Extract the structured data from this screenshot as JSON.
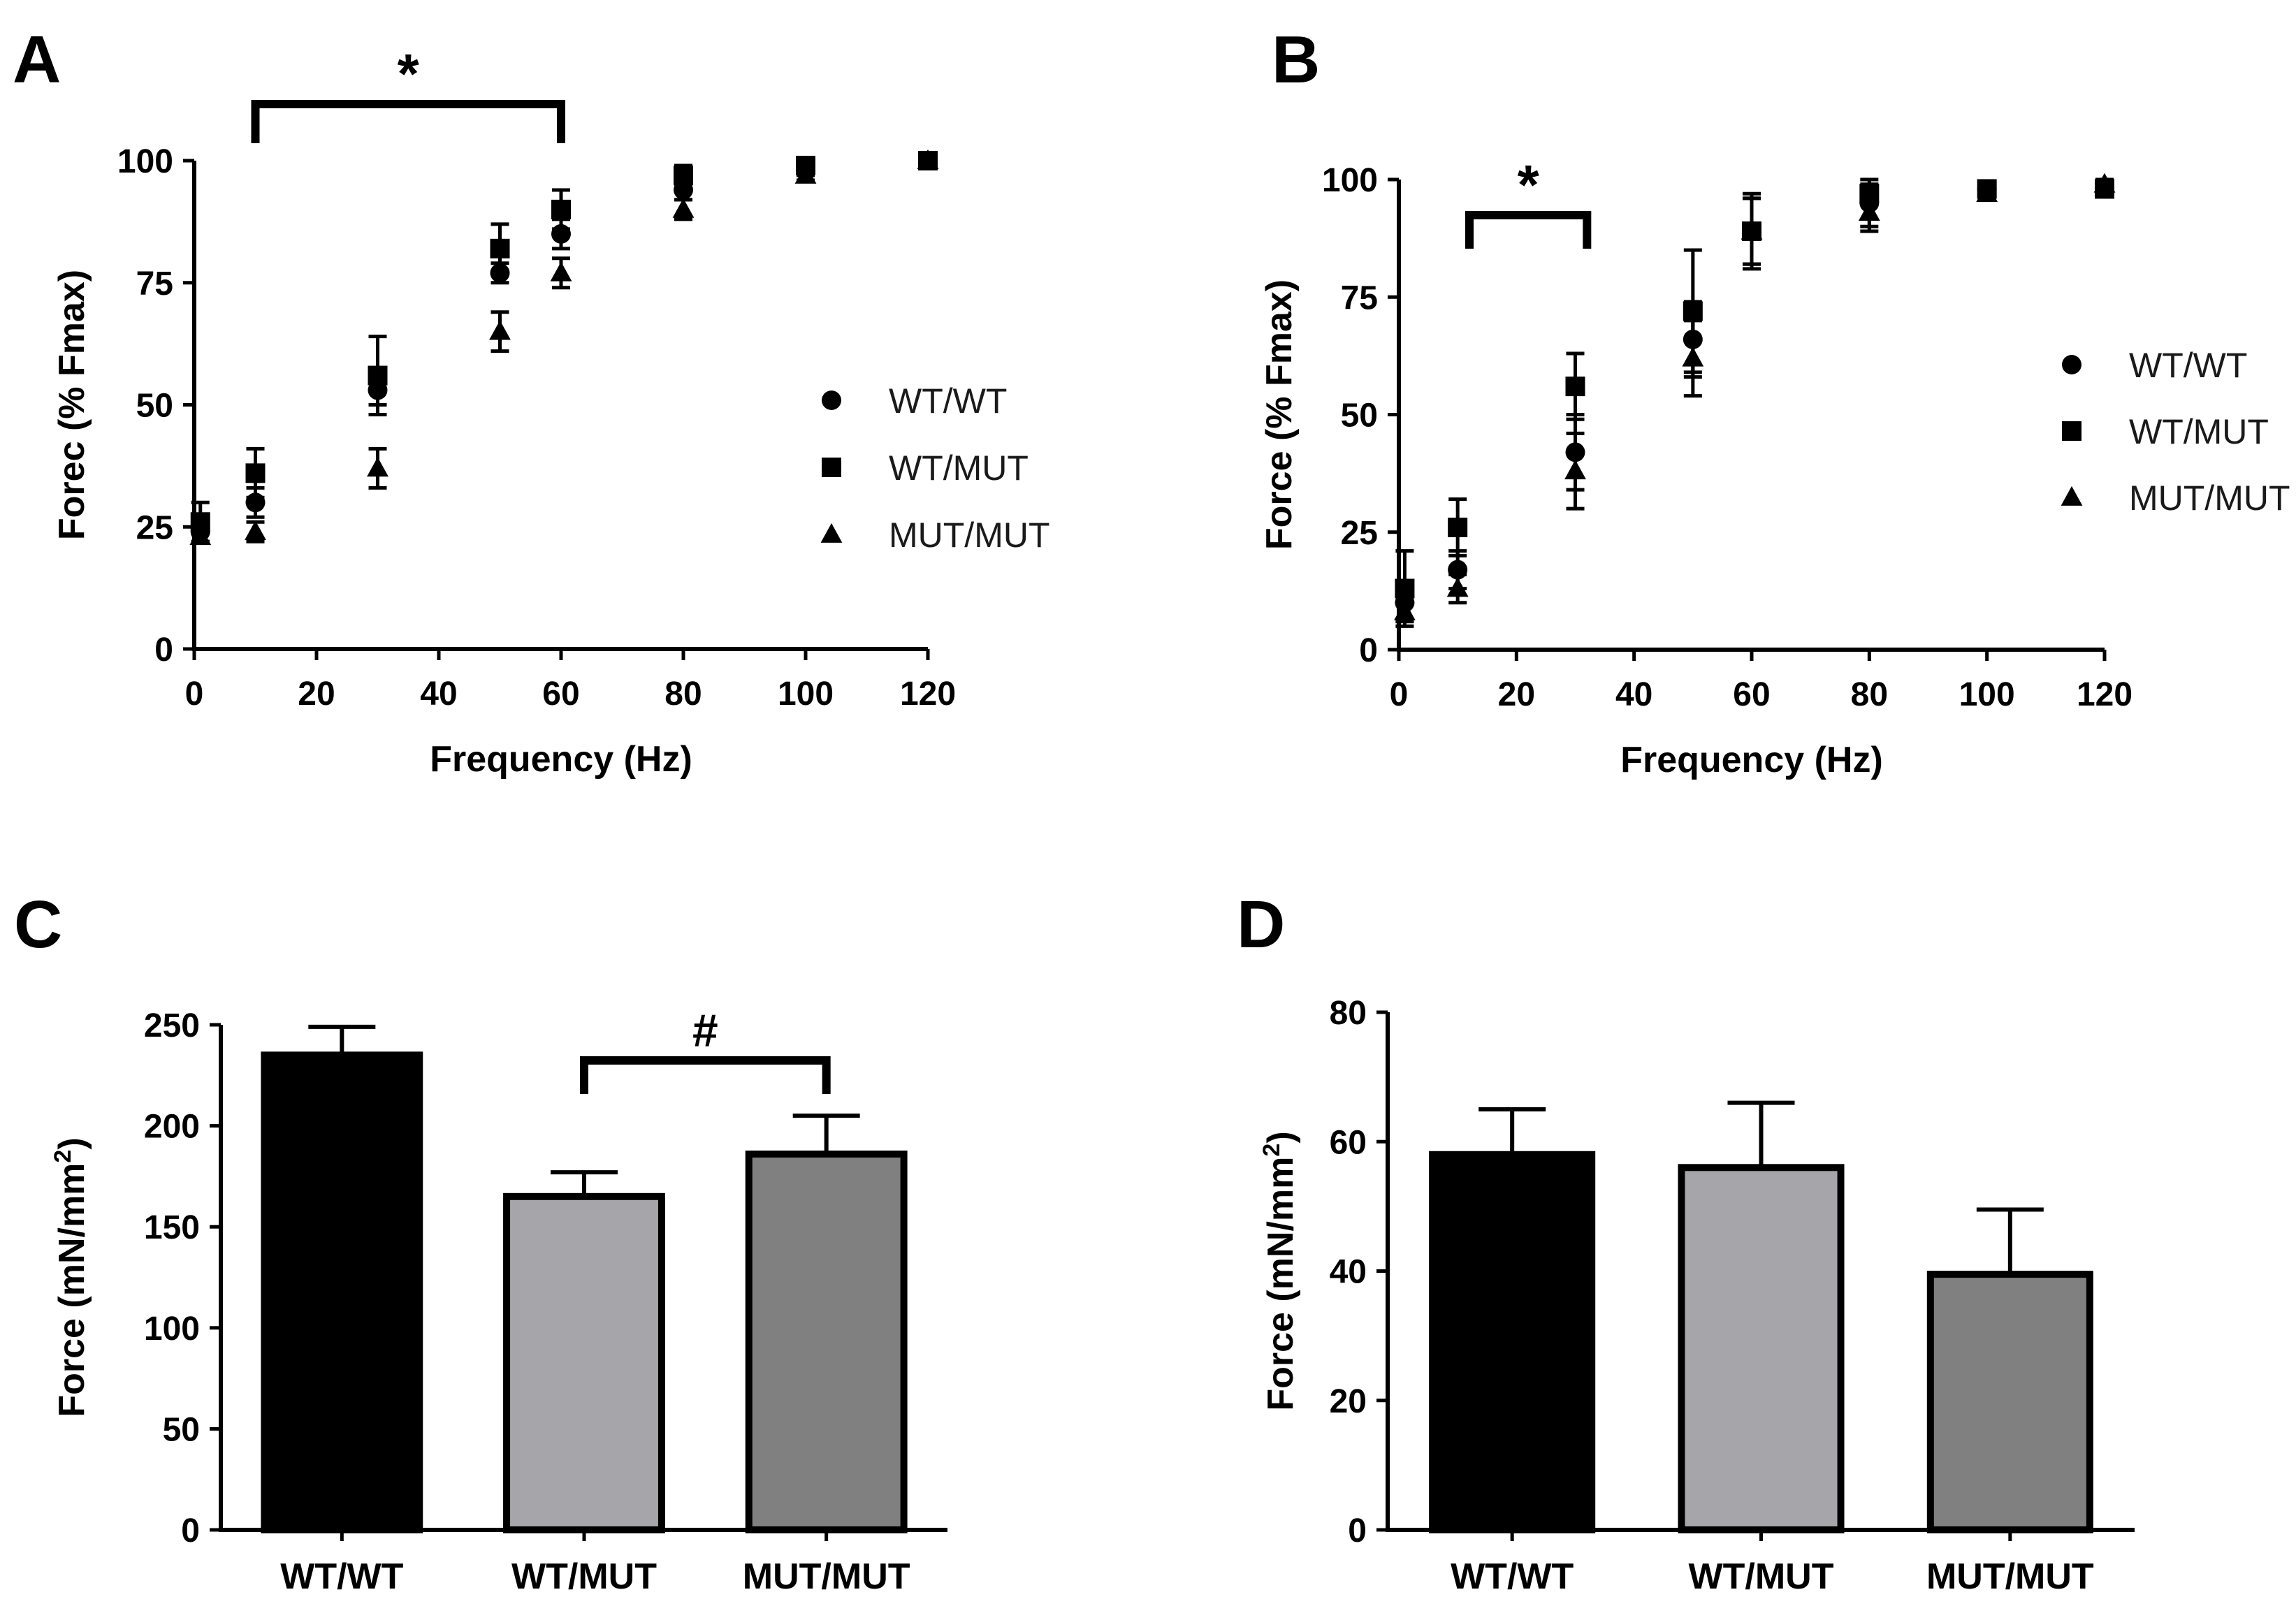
{
  "chart_data": [
    {
      "panel": "A",
      "type": "scatter",
      "xlabel": "Frequency (Hz)",
      "ylabel": "Forec (% Fmax)",
      "xlim": [
        0,
        120
      ],
      "ylim": [
        0,
        100
      ],
      "xticks": [
        "0",
        "20",
        "40",
        "60",
        "80",
        "100",
        "120"
      ],
      "yticks": [
        "0",
        "25",
        "50",
        "75",
        "100"
      ],
      "legend_position": "right",
      "significance": {
        "symbol": "*",
        "from_x": 10,
        "to_x": 60
      },
      "series": [
        {
          "name": "WT/WT",
          "marker": "circle",
          "x": [
            1,
            10,
            30,
            50,
            60,
            80,
            100,
            120
          ],
          "y": [
            24,
            30,
            53,
            77,
            85,
            94,
            98,
            100
          ],
          "err": [
            2,
            3,
            3,
            2,
            3,
            2,
            1,
            0
          ]
        },
        {
          "name": "WT/MUT",
          "marker": "square",
          "x": [
            1,
            10,
            30,
            50,
            60,
            80,
            100,
            120
          ],
          "y": [
            26,
            36,
            56,
            82,
            90,
            97,
            99,
            100
          ],
          "err": [
            4,
            5,
            8,
            5,
            4,
            2,
            1,
            0
          ]
        },
        {
          "name": "MUT/MUT",
          "marker": "triangle",
          "x": [
            1,
            10,
            30,
            50,
            60,
            80,
            100,
            120
          ],
          "y": [
            23,
            24,
            37,
            65,
            77,
            90,
            97,
            100
          ],
          "err": [
            1,
            2,
            4,
            4,
            3,
            2,
            1,
            0
          ]
        }
      ]
    },
    {
      "panel": "B",
      "type": "scatter",
      "xlabel": "Frequency (Hz)",
      "ylabel": "Force (% Fmax)",
      "xlim": [
        0,
        120
      ],
      "ylim": [
        0,
        100
      ],
      "xticks": [
        "0",
        "20",
        "40",
        "60",
        "80",
        "100",
        "120"
      ],
      "yticks": [
        "0",
        "25",
        "50",
        "75",
        "100"
      ],
      "legend_position": "right",
      "significance": {
        "symbol": "*",
        "from_x": 12,
        "to_x": 32
      },
      "series": [
        {
          "name": "WT/WT",
          "marker": "circle",
          "x": [
            1,
            10,
            30,
            50,
            60,
            80,
            100,
            120
          ],
          "y": [
            10,
            17,
            42,
            66,
            89,
            95,
            98,
            98
          ],
          "err": [
            4,
            4,
            8,
            8,
            7,
            5,
            1,
            1
          ]
        },
        {
          "name": "WT/MUT",
          "marker": "square",
          "x": [
            1,
            10,
            30,
            50,
            60,
            80,
            100,
            120
          ],
          "y": [
            13,
            26,
            56,
            72,
            89,
            97,
            98,
            98
          ],
          "err": [
            8,
            6,
            7,
            13,
            8,
            2,
            1,
            1
          ]
        },
        {
          "name": "MUT/MUT",
          "marker": "triangle",
          "x": [
            1,
            10,
            30,
            50,
            60,
            80,
            100,
            120
          ],
          "y": [
            8,
            13,
            38,
            62,
            89,
            93,
            97,
            99
          ],
          "err": [
            2,
            3,
            8,
            8,
            7,
            4,
            1,
            1
          ]
        }
      ]
    },
    {
      "panel": "C",
      "type": "bar",
      "categories": [
        "WT/WT",
        "WT/MUT",
        "MUT/MUT"
      ],
      "values": [
        235,
        165,
        186
      ],
      "errors": [
        14,
        12,
        19
      ],
      "bar_colors": [
        "#000000",
        "#a6a6aa",
        "#808080"
      ],
      "ylabel": "Force (mN/mm²)",
      "ylim": [
        0,
        250
      ],
      "yticks": [
        "0",
        "50",
        "100",
        "150",
        "200",
        "250"
      ],
      "significance": {
        "symbol": "#",
        "from": "WT/MUT",
        "to": "MUT/MUT"
      }
    },
    {
      "panel": "D",
      "type": "bar",
      "categories": [
        "WT/WT",
        "WT/MUT",
        "MUT/MUT"
      ],
      "values": [
        58,
        56,
        39.5
      ],
      "errors": [
        7,
        10,
        10
      ],
      "bar_colors": [
        "#000000",
        "#a6a6aa",
        "#808080"
      ],
      "ylabel": "Force (mN/mm²)",
      "ylim": [
        0,
        80
      ],
      "yticks": [
        "0",
        "20",
        "40",
        "60",
        "80"
      ]
    }
  ]
}
